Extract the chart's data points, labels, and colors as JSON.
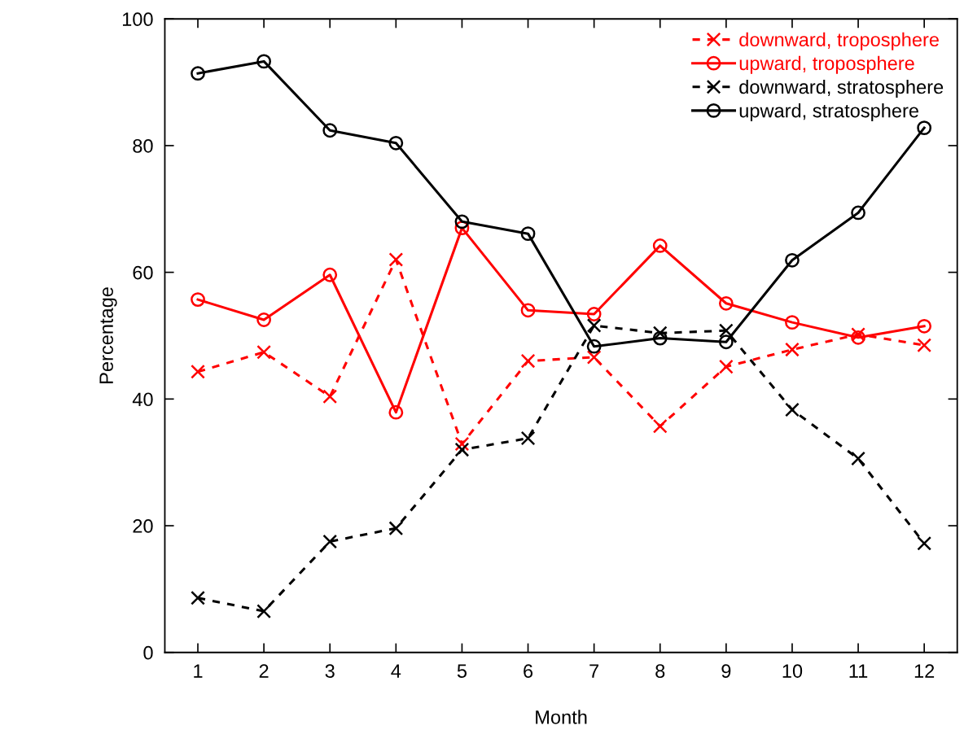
{
  "chart_data": {
    "type": "line",
    "xlabel": "Month",
    "ylabel": "Percentage",
    "x": [
      1,
      2,
      3,
      4,
      5,
      6,
      7,
      8,
      9,
      10,
      11,
      12
    ],
    "xlim": [
      0.5,
      12.5
    ],
    "xticks": [
      1,
      2,
      3,
      4,
      5,
      6,
      7,
      8,
      9,
      10,
      11,
      12
    ],
    "ylim": [
      0,
      100
    ],
    "yticks": [
      0,
      20,
      40,
      60,
      80,
      100
    ],
    "grid": false,
    "legend": "top right",
    "series": [
      {
        "name": "downward, troposphere",
        "color": "#ff0000",
        "marker": "cross",
        "line_style": "dashed",
        "values": [
          44.3,
          47.4,
          40.4,
          62.0,
          32.9,
          46.0,
          46.6,
          35.7,
          45.1,
          47.8,
          50.2,
          48.5
        ]
      },
      {
        "name": "upward, troposphere",
        "color": "#ff0000",
        "marker": "circle",
        "line_style": "solid",
        "values": [
          55.7,
          52.5,
          59.6,
          37.9,
          67.0,
          54.0,
          53.4,
          64.2,
          55.1,
          52.1,
          49.7,
          51.5
        ]
      },
      {
        "name": "downward, stratosphere",
        "color": "#000000",
        "marker": "cross",
        "line_style": "dashed",
        "values": [
          8.6,
          6.5,
          17.5,
          19.6,
          32.0,
          33.8,
          51.6,
          50.4,
          50.8,
          38.3,
          30.6,
          17.2
        ]
      },
      {
        "name": "upward, stratosphere",
        "color": "#000000",
        "marker": "circle",
        "line_style": "solid",
        "values": [
          91.4,
          93.3,
          82.4,
          80.4,
          68.0,
          66.1,
          48.3,
          49.6,
          49.0,
          61.9,
          69.4,
          82.8
        ]
      }
    ]
  }
}
